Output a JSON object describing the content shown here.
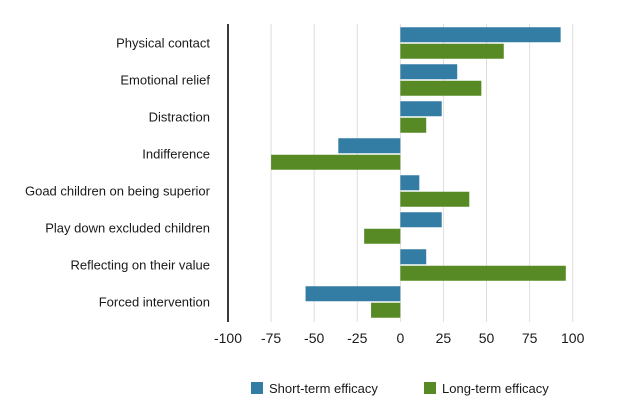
{
  "chart_data": {
    "type": "bar",
    "orientation": "horizontal",
    "title": "",
    "xlabel": "",
    "ylabel": "",
    "categories": [
      "Physical contact",
      "Emotional relief",
      "Distraction",
      "Indifference",
      "Goad children on being superior",
      "Play down excluded children",
      "Reflecting on their value",
      "Forced intervention"
    ],
    "series": [
      {
        "name": "Short-term efficacy",
        "color": "#337ca3",
        "values": [
          93,
          33,
          24,
          -36,
          11,
          24,
          15,
          -55
        ]
      },
      {
        "name": "Long-term efficacy",
        "color": "#578a24",
        "values": [
          60,
          47,
          15,
          -75,
          40,
          -21,
          96,
          -17
        ]
      }
    ],
    "xlim": [
      -100,
      100
    ],
    "xticks": [
      -100,
      -75,
      -50,
      -25,
      0,
      25,
      50,
      75,
      100
    ],
    "xtick_labels": [
      "-100",
      "-75",
      "-50",
      "-25",
      "0",
      "25",
      "50",
      "75",
      "100"
    ],
    "grid": "vertical",
    "legend": "bottom-center"
  }
}
